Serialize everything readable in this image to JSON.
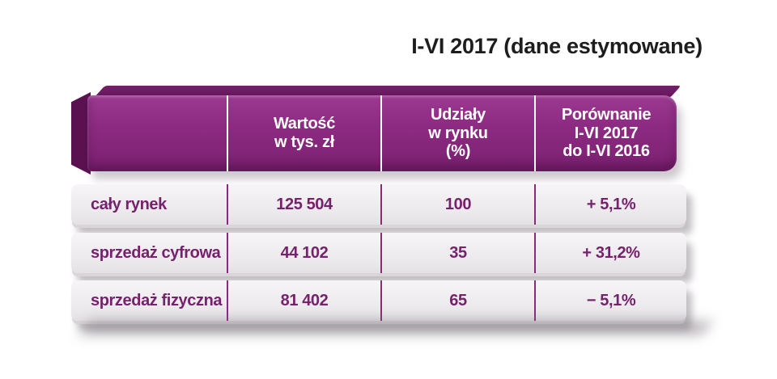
{
  "title": "I-VI 2017 (dane estymowane)",
  "table": {
    "header": {
      "value": "Wartość\nw tys. zł",
      "share": "Udziały\nw rynku\n(%)",
      "comparison": "Porównanie\nI-VI 2017\ndo I-VI 2016"
    },
    "rows": [
      {
        "label": "cały rynek",
        "value": "125 504",
        "share": "100",
        "comparison": "+ 5,1%"
      },
      {
        "label": "sprzedaż cyfrowa",
        "value": "44 102",
        "share": "35",
        "comparison": "+ 31,2%"
      },
      {
        "label": "sprzedaż fizyczna",
        "value": "81 402",
        "share": "65",
        "comparison": "− 5,1%"
      }
    ]
  },
  "colors": {
    "header_purple": "#8d2b82",
    "header_purple_dark": "#5a1150",
    "row_background": "#efedef",
    "row_text_purple": "#76216c",
    "title_text": "#1d1d1d"
  },
  "chart_data": {
    "type": "table",
    "title": "I-VI 2017 (dane estymowane)",
    "columns": [
      "",
      "Wartość w tys. zł",
      "Udziały w rynku (%)",
      "Porównanie I-VI 2017 do I-VI 2016"
    ],
    "rows": [
      [
        "cały rynek",
        "125 504",
        "100",
        "+ 5,1%"
      ],
      [
        "sprzedaż cyfrowa",
        "44 102",
        "35",
        "+ 31,2%"
      ],
      [
        "sprzedaż fizyczna",
        "81 402",
        "65",
        "− 5,1%"
      ]
    ],
    "values_tys_zl": [
      125504,
      44102,
      81402
    ],
    "market_share_pct": [
      100,
      35,
      65
    ],
    "yoy_change_pct": [
      5.1,
      31.2,
      -5.1
    ]
  }
}
